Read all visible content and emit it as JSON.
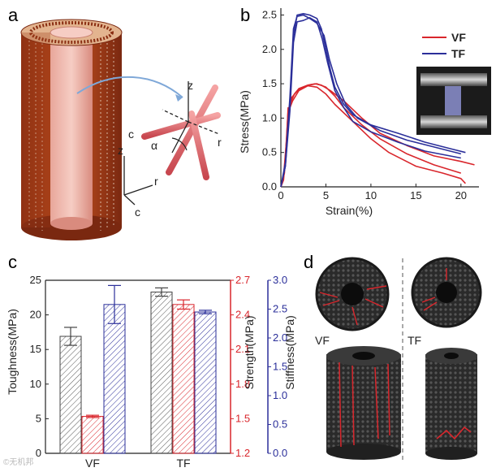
{
  "panels": {
    "a": {
      "letter": "a",
      "axis_labels": {
        "z1": "z",
        "r1": "r",
        "c1": "c",
        "z2": "z",
        "r2": "r",
        "c2": "c",
        "alpha": "α"
      }
    },
    "b": {
      "letter": "b"
    },
    "c": {
      "letter": "c"
    },
    "d": {
      "letter": "d",
      "labels": {
        "vf": "VF",
        "tf": "TF"
      }
    }
  },
  "watermark": "©无机邦",
  "chart_data": [
    {
      "panel": "b",
      "type": "line",
      "xlabel": "Strain(%)",
      "ylabel": "Stress(MPa)",
      "xlim": [
        0,
        22
      ],
      "ylim": [
        0,
        2.6
      ],
      "xticks": [
        "0",
        "5",
        "10",
        "15",
        "20"
      ],
      "xtick_values": [
        0,
        5,
        10,
        15,
        20
      ],
      "yticks": [
        "0.0",
        "0.5",
        "1.0",
        "1.5",
        "2.0",
        "2.5"
      ],
      "ytick_values": [
        0,
        0.5,
        1.0,
        1.5,
        2.0,
        2.5
      ],
      "legend": [
        {
          "name": "VF",
          "color": "#d9262c"
        },
        {
          "name": "TF",
          "color": "#2b2f9a"
        }
      ],
      "legend_position": "top-right",
      "series": [
        {
          "group": "VF",
          "color": "#d9262c",
          "x": [
            0,
            0.3,
            0.6,
            0.8,
            1.0,
            1.3,
            2,
            3,
            4,
            5,
            6,
            8,
            10,
            12,
            15,
            18,
            20,
            20.5
          ],
          "y": [
            0,
            0.1,
            0.6,
            1.15,
            1.15,
            1.25,
            1.4,
            1.47,
            1.45,
            1.35,
            1.2,
            0.95,
            0.7,
            0.5,
            0.3,
            0.2,
            0.12,
            0.05
          ]
        },
        {
          "group": "VF",
          "color": "#d9262c",
          "x": [
            0,
            0.3,
            0.7,
            1.0,
            1.5,
            2,
            3,
            3.8,
            4.5,
            5.5,
            7,
            9,
            11,
            14,
            17,
            20,
            21.5
          ],
          "y": [
            0,
            0.15,
            0.8,
            1.2,
            1.35,
            1.43,
            1.48,
            1.5,
            1.48,
            1.4,
            1.25,
            1.0,
            0.78,
            0.6,
            0.45,
            0.37,
            0.32
          ]
        },
        {
          "group": "VF",
          "color": "#d9262c",
          "x": [
            0,
            0.4,
            0.8,
            1.2,
            2,
            3,
            4,
            5,
            6,
            7,
            9,
            11,
            14,
            17,
            20
          ],
          "y": [
            0,
            0.2,
            1.1,
            1.3,
            1.42,
            1.48,
            1.5,
            1.45,
            1.32,
            1.15,
            0.9,
            0.7,
            0.48,
            0.32,
            0.2
          ]
        },
        {
          "group": "TF",
          "color": "#2b2f9a",
          "x": [
            0,
            0.5,
            1.0,
            1.4,
            1.8,
            2.5,
            3.2,
            4.0,
            4.5,
            5.0,
            5.5,
            6,
            7,
            8,
            10,
            13,
            16,
            19,
            20.5
          ],
          "y": [
            0,
            0.3,
            1.2,
            2.2,
            2.5,
            2.52,
            2.5,
            2.45,
            2.3,
            2.0,
            1.7,
            1.45,
            1.2,
            1.05,
            0.9,
            0.78,
            0.65,
            0.55,
            0.5
          ]
        },
        {
          "group": "TF",
          "color": "#2b2f9a",
          "x": [
            0,
            0.5,
            1.0,
            1.4,
            1.8,
            2.5,
            3.2,
            4.0,
            4.6,
            5.2,
            6,
            7,
            8,
            10,
            13,
            16,
            20
          ],
          "y": [
            0,
            0.3,
            1.1,
            2.1,
            2.4,
            2.42,
            2.46,
            2.4,
            2.15,
            1.8,
            1.4,
            1.15,
            0.95,
            0.8,
            0.65,
            0.52,
            0.42
          ]
        },
        {
          "group": "TF",
          "color": "#2b2f9a",
          "x": [
            0,
            0.5,
            1.0,
            1.4,
            1.8,
            2.5,
            3.2,
            4.0,
            4.8,
            5.4,
            6.2,
            7.2,
            8.5,
            11,
            14,
            17,
            20
          ],
          "y": [
            0,
            0.35,
            1.3,
            2.3,
            2.48,
            2.5,
            2.45,
            2.38,
            2.2,
            1.85,
            1.5,
            1.2,
            1.0,
            0.82,
            0.68,
            0.58,
            0.48
          ]
        }
      ]
    },
    {
      "panel": "c",
      "type": "bar",
      "categories": [
        "VF",
        "TF"
      ],
      "axes": {
        "left": {
          "label": "Toughness(MPa)",
          "ticks": [
            "0",
            "5",
            "10",
            "15",
            "20",
            "25"
          ],
          "tick_values": [
            0,
            5,
            10,
            15,
            20,
            25
          ],
          "range": [
            0,
            25
          ],
          "color": "#222222"
        },
        "right1": {
          "label": "Strength(MPa)",
          "ticks": [
            "1.2",
            "1.5",
            "1.8",
            "2.1",
            "2.4",
            "2.7"
          ],
          "tick_values": [
            1.2,
            1.5,
            1.8,
            2.1,
            2.4,
            2.7
          ],
          "range": [
            1.2,
            2.7
          ],
          "color": "#d9262c"
        },
        "right2": {
          "label": "Stiffness(MPa)",
          "ticks": [
            "0.0",
            "0.5",
            "1.0",
            "1.5",
            "2.0",
            "2.5",
            "3.0"
          ],
          "tick_values": [
            0,
            0.5,
            1.0,
            1.5,
            2.0,
            2.5,
            3.0
          ],
          "range": [
            0,
            3.0
          ],
          "color": "#2b2f9a"
        }
      },
      "series": [
        {
          "metric": "toughness",
          "axis": "left",
          "color": "#444444",
          "values": [
            16.9,
            23.3
          ],
          "errors": [
            1.3,
            0.6
          ]
        },
        {
          "metric": "strength",
          "axis": "right1",
          "color": "#d9262c",
          "values": [
            1.52,
            2.49
          ],
          "errors": [
            0.01,
            0.04
          ]
        },
        {
          "metric": "stiffness",
          "axis": "right2",
          "color": "#2b2f9a",
          "values": [
            2.58,
            2.45
          ],
          "errors": [
            0.33,
            0.03
          ]
        }
      ]
    }
  ]
}
